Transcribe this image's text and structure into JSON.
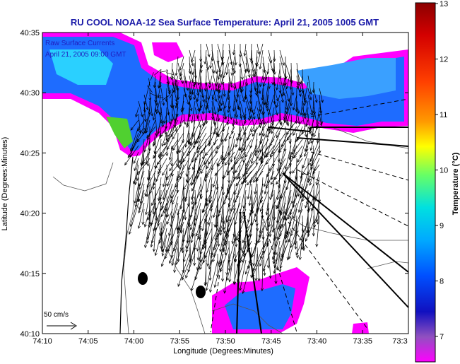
{
  "title": "RU COOL  NOAA-12  Sea Surface Temperature:  April 21, 2005 1005 GMT",
  "overlay_labels": [
    "Raw Surface Currents",
    "April 21, 2005 09:00 GMT"
  ],
  "axes": {
    "xlabel": "Longitude (Degrees:Minutes)",
    "ylabel": "Latitude (Degrees:Minutes)",
    "xticks": [
      "74:10",
      "74:05",
      "74:00",
      "73:55",
      "73:50",
      "73:45",
      "73:40",
      "73:35",
      "73:3"
    ],
    "yticks": [
      "40:35",
      "40:30",
      "40:25",
      "40:20",
      "40:15",
      "40:10"
    ]
  },
  "scale_label": "50 cm/s",
  "colorbar": {
    "label": "Temperature (°C)",
    "ticks": [
      "13",
      "12",
      "11",
      "10",
      "9",
      "8",
      "7"
    ],
    "colors": [
      "#8b0000",
      "#d40000",
      "#ff4000",
      "#ff9900",
      "#ffff00",
      "#66ff66",
      "#00e0e0",
      "#00aaff",
      "#0050ff",
      "#1010c0",
      "#9050c0",
      "#ff00ff"
    ]
  },
  "map_colors": {
    "land": "#ffffff",
    "land_outline": "#444444",
    "sst_warm": "#ff00ff",
    "sst_cool": "#1e6cff"
  }
}
